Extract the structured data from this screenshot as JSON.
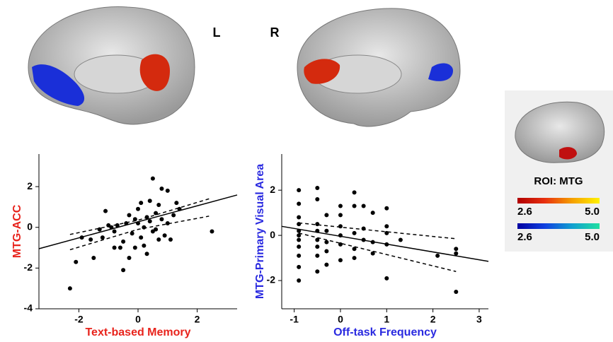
{
  "chart_data": [
    {
      "type": "scatter",
      "x_label": "Text-based Memory",
      "y_label": "MTG-ACC",
      "x_label_color": "#e8231c",
      "y_label_color": "#e8231c",
      "xlim": [
        -3.35,
        3.35
      ],
      "ylim": [
        -4,
        3.6
      ],
      "xticks": [
        -2,
        0,
        2
      ],
      "yticks": [
        -4,
        -2,
        0,
        2
      ],
      "color": "#000000",
      "x": [
        -2.3,
        -2.1,
        -1.9,
        -1.6,
        -1.5,
        -1.3,
        -1.2,
        -1.1,
        -1.0,
        -0.9,
        -0.8,
        -0.7,
        -0.6,
        -0.5,
        -0.5,
        -0.4,
        -0.3,
        -0.3,
        -0.2,
        -0.1,
        -0.1,
        0,
        0,
        0.1,
        0.1,
        0.2,
        0.2,
        0.3,
        0.4,
        0.4,
        0.5,
        0.5,
        0.6,
        0.6,
        0.7,
        0.8,
        0.8,
        0.9,
        1.0,
        1.0,
        1.1,
        1.2,
        1.3,
        1.4,
        2.5,
        -0.8,
        0.3,
        0.7
      ],
      "values": [
        -3,
        -1.7,
        -0.5,
        -0.6,
        -1.5,
        -0.1,
        -0.5,
        0.8,
        0.1,
        0,
        -1,
        0.1,
        -1,
        -2.1,
        -0.7,
        0.2,
        -1.5,
        0.6,
        -0.3,
        0.4,
        -1,
        0.9,
        0.2,
        -0.5,
        1.2,
        0,
        -0.9,
        0.5,
        1.3,
        0.3,
        -0.2,
        2.4,
        0.7,
        -0.1,
        1.1,
        1.9,
        0.4,
        -0.4,
        1.8,
        0.2,
        -0.6,
        0.6,
        1.2,
        0.9,
        -0.2,
        -0.2,
        -1.3,
        -0.6
      ],
      "fit": {
        "x": [
          -3.35,
          3.35
        ],
        "values": [
          -1.05,
          1.59
        ]
      },
      "ci_upper": {
        "x": [
          -2.3,
          0,
          2.4
        ],
        "values": [
          -0.35,
          0.35,
          1.4
        ]
      },
      "ci_lower": {
        "x": [
          -2.3,
          0,
          2.4
        ],
        "values": [
          -1.1,
          -0.1,
          0.55
        ]
      }
    },
    {
      "type": "scatter",
      "x_label": "Off-task Frequency",
      "y_label": "MTG-Primary Visual Area",
      "x_label_color": "#2a2ae0",
      "y_label_color": "#2a2ae0",
      "xlim": [
        -1.27,
        3.2
      ],
      "ylim": [
        -3.25,
        3.6
      ],
      "xticks": [
        -1,
        0,
        1,
        2,
        3
      ],
      "yticks": [
        -2,
        0,
        2
      ],
      "color": "#000000",
      "x": [
        -0.9,
        -0.9,
        -0.9,
        -0.9,
        -0.9,
        -0.9,
        -0.9,
        -0.9,
        -0.9,
        -0.9,
        -0.9,
        -0.5,
        -0.5,
        -0.5,
        -0.5,
        -0.5,
        -0.5,
        -0.5,
        -0.5,
        -0.3,
        -0.3,
        -0.3,
        -0.3,
        -0.3,
        0,
        0,
        0,
        0,
        0,
        0,
        0.3,
        0.3,
        0.3,
        0.3,
        0.3,
        0.5,
        0.5,
        0.5,
        0.7,
        0.7,
        0.7,
        1,
        1,
        1,
        1,
        1,
        1.3,
        2.1,
        2.5,
        2.5,
        2.5
      ],
      "values": [
        2,
        1.4,
        0.8,
        0.5,
        0.2,
        0,
        -0.2,
        -0.5,
        -0.9,
        -1.4,
        -2,
        2.1,
        1.6,
        0.5,
        0.2,
        -0.2,
        -0.5,
        -0.9,
        -1.6,
        0.9,
        0.2,
        -0.3,
        -0.7,
        -1.3,
        1.3,
        0.9,
        0.4,
        0,
        -0.4,
        -1.1,
        1.9,
        1.3,
        0.1,
        -0.6,
        -1.0,
        1.3,
        0.3,
        -0.2,
        1.0,
        -0.3,
        -0.8,
        1.2,
        0.4,
        0.1,
        -0.4,
        -1.9,
        -0.2,
        -0.9,
        -0.6,
        -0.8,
        -2.5
      ],
      "fit": {
        "x": [
          -1.27,
          3.2
        ],
        "values": [
          0.4,
          -1.15
        ]
      },
      "ci_upper": {
        "x": [
          -0.9,
          2.5
        ],
        "values": [
          0.55,
          -0.15
        ]
      },
      "ci_lower": {
        "x": [
          -0.9,
          2.5
        ],
        "values": [
          0.1,
          -1.6
        ]
      }
    }
  ],
  "labels": {
    "left": "L",
    "right": "R",
    "roi": "ROI: MTG"
  },
  "colorbars": [
    {
      "min": 2.6,
      "max": {
        "value": 5,
        "label": "5.0"
      },
      "colors": [
        "#b00000",
        "#e83010",
        "#f5a000",
        "#fff200"
      ]
    },
    {
      "min": 2.6,
      "max": {
        "value": 5,
        "label": "5.0"
      },
      "colors": [
        "#0000a0",
        "#1040e0",
        "#10a0d0",
        "#20e0a0"
      ]
    }
  ]
}
